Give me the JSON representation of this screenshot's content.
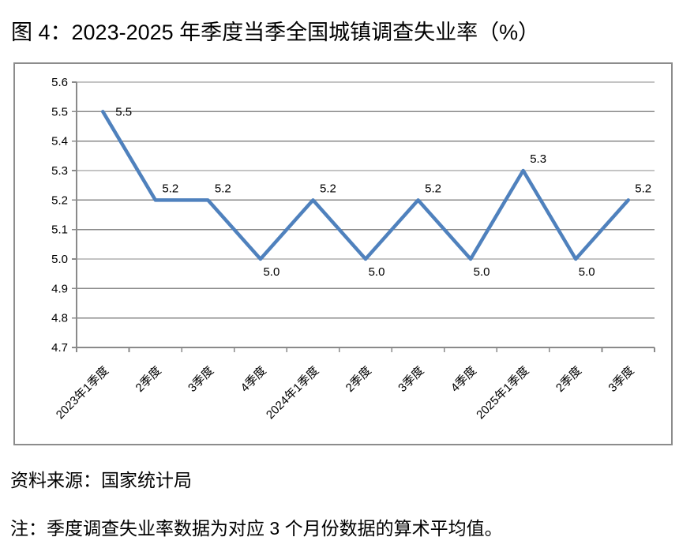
{
  "chart_data": {
    "type": "line",
    "title": "图 4：2023-2025 年季度当季全国城镇调查失业率（%）",
    "categories": [
      "2023年1季度",
      "2季度",
      "3季度",
      "4季度",
      "2024年1季度",
      "2季度",
      "3季度",
      "4季度",
      "2025年1季度",
      "2季度",
      "3季度"
    ],
    "values": [
      5.5,
      5.2,
      5.2,
      5.0,
      5.2,
      5.0,
      5.2,
      5.0,
      5.3,
      5.0,
      5.2
    ],
    "data_label_positions": [
      "right",
      "above",
      "above",
      "below",
      "above",
      "below",
      "above",
      "below",
      "above",
      "below",
      "above"
    ],
    "xlabel": "",
    "ylabel": "",
    "ylim": [
      4.7,
      5.6
    ],
    "ytick_step": 0.1,
    "ytick_labels": [
      "5.6",
      "5.5",
      "5.4",
      "5.3",
      "5.2",
      "5.1",
      "5.0",
      "4.9",
      "4.8",
      "4.7"
    ],
    "grid": "horizontal",
    "legend": "none",
    "line_color": "#4F81BD",
    "grid_color": "#8A8A8A",
    "axis_color": "#8A8A8A",
    "frame_color": "#8C8C8C",
    "text_color": "#000000"
  },
  "notes": {
    "source": "资料来源：国家统计局",
    "footnote": "注：季度调查失业率数据为对应 3 个月份数据的算术平均值。"
  }
}
